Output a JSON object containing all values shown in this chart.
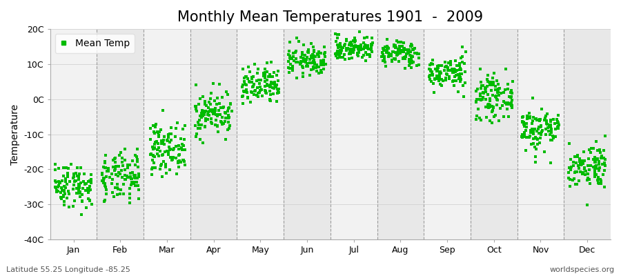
{
  "title": "Monthly Mean Temperatures 1901  -  2009",
  "ylabel": "Temperature",
  "xlabel_months": [
    "Jan",
    "Feb",
    "Mar",
    "Apr",
    "May",
    "Jun",
    "Jul",
    "Aug",
    "Sep",
    "Oct",
    "Nov",
    "Dec"
  ],
  "ylim": [
    -40,
    20
  ],
  "yticks": [
    -40,
    -30,
    -20,
    -10,
    0,
    10,
    20
  ],
  "ytick_labels": [
    "-40C",
    "-30C",
    "-20C",
    "-10C",
    "0C",
    "10C",
    "20C"
  ],
  "scatter_color": "#00bb00",
  "figure_bg": "#ffffff",
  "plot_bg_light": "#f2f2f2",
  "plot_bg_dark": "#e8e8e8",
  "legend_label": "Mean Temp",
  "footer_left": "Latitude 55.25 Longitude -85.25",
  "footer_right": "worldspecies.org",
  "n_years": 109,
  "monthly_means": [
    -24.5,
    -22.5,
    -14.0,
    -4.0,
    3.5,
    11.0,
    14.5,
    13.0,
    7.5,
    0.5,
    -8.5,
    -19.0
  ],
  "monthly_stds": [
    3.2,
    3.5,
    3.5,
    3.2,
    2.8,
    2.2,
    1.8,
    1.8,
    2.3,
    3.0,
    3.2,
    3.2
  ],
  "marker_size": 12,
  "title_fontsize": 15,
  "axis_fontsize": 10,
  "tick_fontsize": 9,
  "footer_fontsize": 8
}
